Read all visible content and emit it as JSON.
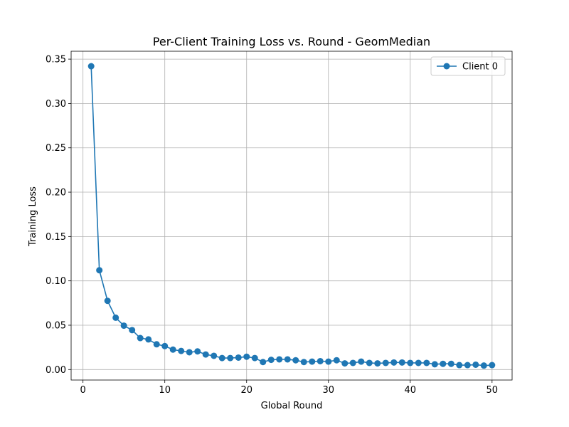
{
  "chart_data": {
    "type": "line",
    "title": "Per-Client Training Loss vs. Round - GeomMedian",
    "xlabel": "Global Round",
    "ylabel": "Training Loss",
    "xlim": [
      -1.45,
      52.45
    ],
    "ylim": [
      -0.0118,
      0.3589
    ],
    "x_ticks": [
      0,
      10,
      20,
      30,
      40,
      50
    ],
    "x_tick_labels": [
      "0",
      "10",
      "20",
      "30",
      "40",
      "50"
    ],
    "y_ticks": [
      0.0,
      0.05,
      0.1,
      0.15,
      0.2,
      0.25,
      0.3,
      0.35
    ],
    "y_tick_labels": [
      "0.00",
      "0.05",
      "0.10",
      "0.15",
      "0.20",
      "0.25",
      "0.30",
      "0.35"
    ],
    "grid": true,
    "legend_position": "top-right",
    "series": [
      {
        "name": "Client 0",
        "color": "#1f77b4",
        "marker": "circle",
        "x": [
          1,
          2,
          3,
          4,
          5,
          6,
          7,
          8,
          9,
          10,
          11,
          12,
          13,
          14,
          15,
          16,
          17,
          18,
          19,
          20,
          21,
          22,
          23,
          24,
          25,
          26,
          27,
          28,
          29,
          30,
          31,
          32,
          33,
          34,
          35,
          36,
          37,
          38,
          39,
          40,
          41,
          42,
          43,
          44,
          45,
          46,
          47,
          48,
          49,
          50
        ],
        "values": [
          0.342,
          0.112,
          0.0775,
          0.0585,
          0.0495,
          0.0445,
          0.0355,
          0.034,
          0.0285,
          0.0265,
          0.0225,
          0.021,
          0.0195,
          0.0205,
          0.017,
          0.0155,
          0.013,
          0.013,
          0.0135,
          0.0145,
          0.013,
          0.0085,
          0.011,
          0.0115,
          0.0115,
          0.0105,
          0.0085,
          0.009,
          0.0095,
          0.009,
          0.0105,
          0.007,
          0.0075,
          0.009,
          0.0075,
          0.007,
          0.0075,
          0.008,
          0.008,
          0.0075,
          0.0075,
          0.0075,
          0.006,
          0.0065,
          0.0065,
          0.005,
          0.005,
          0.0055,
          0.0045,
          0.005
        ]
      }
    ]
  }
}
